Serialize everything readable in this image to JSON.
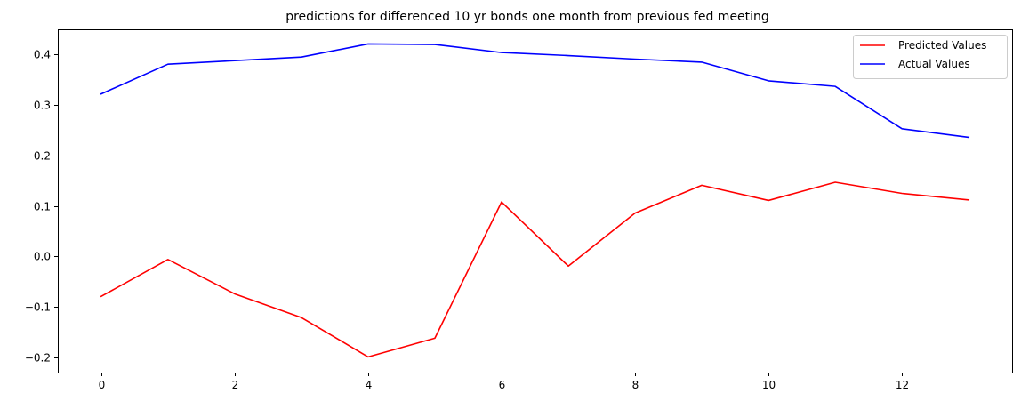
{
  "chart_data": {
    "type": "line",
    "title": "predictions for differenced 10 yr bonds one month from previous fed meeting",
    "xlabel": "",
    "ylabel": "",
    "x": [
      0,
      1,
      2,
      3,
      4,
      5,
      6,
      7,
      8,
      9,
      10,
      11,
      12,
      13
    ],
    "xlim": [
      -0.65,
      13.65
    ],
    "ylim": [
      -0.23,
      0.45
    ],
    "x_ticks": [
      0,
      2,
      4,
      6,
      8,
      10,
      12
    ],
    "x_tick_labels": [
      "0",
      "2",
      "4",
      "6",
      "8",
      "10",
      "12"
    ],
    "y_ticks": [
      -0.2,
      -0.1,
      0.0,
      0.1,
      0.2,
      0.3,
      0.4
    ],
    "y_tick_labels": [
      "−0.2",
      "−0.1",
      "0.0",
      "0.1",
      "0.2",
      "0.3",
      "0.4"
    ],
    "grid": false,
    "legend_position": "top-right",
    "series": [
      {
        "name": "Predicted Values",
        "color": "#ff0000",
        "values": [
          -0.079,
          -0.006,
          -0.074,
          -0.121,
          -0.199,
          -0.162,
          0.108,
          -0.019,
          0.086,
          0.141,
          0.111,
          0.147,
          0.125,
          0.112
        ]
      },
      {
        "name": "Actual Values",
        "color": "#0000ff",
        "values": [
          0.322,
          0.381,
          0.388,
          0.395,
          0.421,
          0.42,
          0.404,
          0.398,
          0.391,
          0.385,
          0.348,
          0.337,
          0.253,
          0.236
        ]
      }
    ]
  }
}
